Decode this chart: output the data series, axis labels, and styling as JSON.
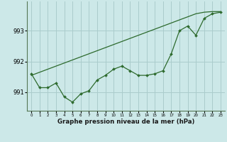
{
  "hours": [
    0,
    1,
    2,
    3,
    4,
    5,
    6,
    7,
    8,
    9,
    10,
    11,
    12,
    13,
    14,
    15,
    16,
    17,
    18,
    19,
    20,
    21,
    22,
    23
  ],
  "pressure": [
    991.6,
    991.15,
    991.15,
    991.3,
    990.85,
    990.68,
    990.95,
    991.05,
    991.4,
    991.55,
    991.75,
    991.85,
    991.7,
    991.55,
    991.55,
    991.6,
    991.7,
    992.25,
    993.0,
    993.15,
    992.85,
    993.4,
    993.55,
    993.6
  ],
  "pressure_trend": [
    991.55,
    991.65,
    991.75,
    991.85,
    991.95,
    992.05,
    992.15,
    992.25,
    992.35,
    992.45,
    992.55,
    992.65,
    992.75,
    992.85,
    992.95,
    993.05,
    993.15,
    993.25,
    993.35,
    993.45,
    993.55,
    993.6,
    993.62,
    993.62
  ],
  "line_color": "#2d6a2d",
  "bg_color": "#cce8e8",
  "grid_color": "#aacccc",
  "ylabel_values": [
    991,
    992,
    993
  ],
  "ylim": [
    990.4,
    993.95
  ],
  "xlim": [
    -0.5,
    23.5
  ],
  "xlabel": "Graphe pression niveau de la mer (hPa)"
}
